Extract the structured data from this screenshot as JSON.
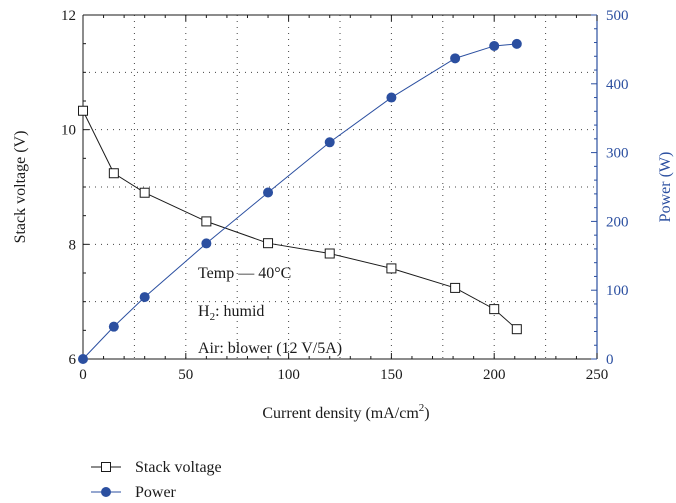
{
  "chart_data": {
    "type": "line",
    "xlabel": "Current density (mA/cm",
    "xlabel_sup": "2",
    "xlabel_close": ")",
    "ylabel_left": "Stack voltage (V)",
    "ylabel_right": "Power (W)",
    "xlim": [
      0,
      250
    ],
    "ylim_left": [
      6,
      12
    ],
    "ylim_right": [
      0,
      500
    ],
    "x_ticks": [
      0,
      50,
      100,
      150,
      200,
      250
    ],
    "y_left_ticks": [
      6,
      8,
      10,
      12
    ],
    "y_right_ticks": [
      0,
      100,
      200,
      300,
      400,
      500
    ],
    "grid": true,
    "annotations": [
      {
        "text": "Temp — 40°C"
      },
      {
        "text": "H",
        "sub": "2",
        "rest": ": humid"
      },
      {
        "text": "Air: blower (12 V/5A)"
      }
    ],
    "series": [
      {
        "name": "Stack voltage",
        "axis": "left",
        "color": "#1a1a1a",
        "marker": "open-square",
        "x": [
          0,
          15,
          30,
          60,
          90,
          120,
          150,
          181,
          200,
          211
        ],
        "y": [
          10.33,
          9.24,
          8.9,
          8.4,
          8.02,
          7.84,
          7.58,
          7.24,
          6.87,
          6.52
        ]
      },
      {
        "name": "Power",
        "axis": "right",
        "color": "#2b4fa0",
        "marker": "filled-circle",
        "x": [
          0,
          15,
          30,
          60,
          90,
          120,
          150,
          181,
          200,
          211
        ],
        "y": [
          0,
          47,
          90,
          168,
          242,
          315,
          380,
          437,
          455,
          458
        ]
      }
    ],
    "legend": {
      "placement": "bottom-left",
      "entries": [
        "Stack voltage",
        "Power"
      ]
    }
  }
}
